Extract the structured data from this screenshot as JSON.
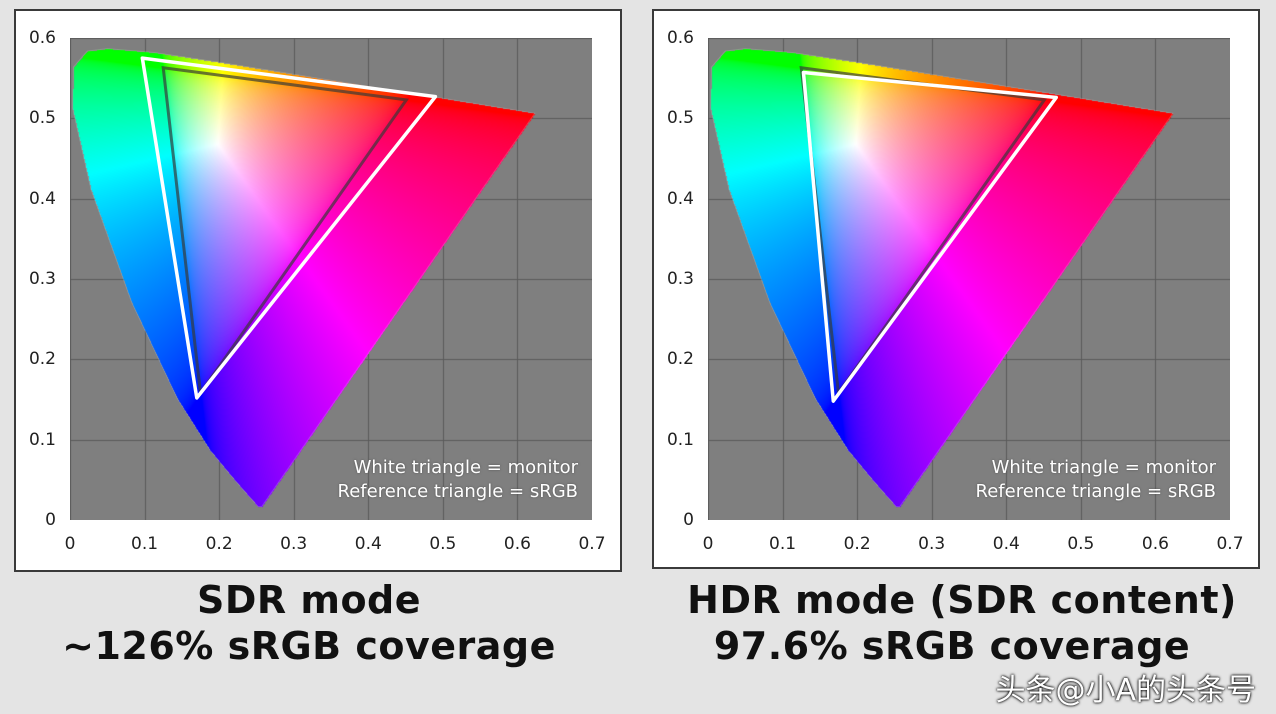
{
  "chart_data": [
    {
      "type": "scatter",
      "subtype": "CIE 1976 u'v' chromaticity gamut diagram",
      "title": "",
      "xlim": [
        0,
        0.7
      ],
      "ylim": [
        0,
        0.6
      ],
      "x_ticks": [
        "0",
        "0.1",
        "0.2",
        "0.3",
        "0.4",
        "0.5",
        "0.6",
        "0.7"
      ],
      "y_ticks": [
        "0",
        "0.1",
        "0.2",
        "0.3",
        "0.4",
        "0.5",
        "0.6"
      ],
      "grid": true,
      "legend": [
        "White triangle = monitor",
        "Reference triangle = sRGB"
      ],
      "legend_position": "bottom-right",
      "monitor_triangle": [
        [
          0.097,
          0.575
        ],
        [
          0.49,
          0.527
        ],
        [
          0.17,
          0.152
        ]
      ],
      "srgb_triangle": [
        [
          0.125,
          0.563
        ],
        [
          0.451,
          0.523
        ],
        [
          0.175,
          0.158
        ]
      ],
      "spectral_locus": [
        [
          0.2568,
          0.0165
        ],
        [
          0.2522,
          0.0169
        ],
        [
          0.2347,
          0.035
        ],
        [
          0.2161,
          0.055
        ],
        [
          0.1877,
          0.0871
        ],
        [
          0.144,
          0.151
        ],
        [
          0.0828,
          0.2708
        ],
        [
          0.0282,
          0.4117
        ],
        [
          0.0035,
          0.513
        ],
        [
          0.0046,
          0.5638
        ],
        [
          0.0231,
          0.5837
        ],
        [
          0.0501,
          0.5868
        ],
        [
          0.1127,
          0.582
        ],
        [
          0.2026,
          0.5694
        ],
        [
          0.3315,
          0.5501
        ],
        [
          0.4692,
          0.5296
        ],
        [
          0.5565,
          0.5165
        ],
        [
          0.6233,
          0.5064
        ]
      ],
      "caption": [
        "SDR mode",
        "~126% sRGB coverage"
      ]
    },
    {
      "type": "scatter",
      "subtype": "CIE 1976 u'v' chromaticity gamut diagram",
      "title": "",
      "xlim": [
        0,
        0.7
      ],
      "ylim": [
        0,
        0.6
      ],
      "x_ticks": [
        "0",
        "0.1",
        "0.2",
        "0.3",
        "0.4",
        "0.5",
        "0.6",
        "0.7"
      ],
      "y_ticks": [
        "0",
        "0.1",
        "0.2",
        "0.3",
        "0.4",
        "0.5",
        "0.6"
      ],
      "grid": true,
      "legend": [
        "White triangle = monitor",
        "Reference triangle = sRGB"
      ],
      "legend_position": "bottom-right",
      "monitor_triangle": [
        [
          0.128,
          0.557
        ],
        [
          0.467,
          0.526
        ],
        [
          0.168,
          0.148
        ]
      ],
      "srgb_triangle": [
        [
          0.125,
          0.563
        ],
        [
          0.451,
          0.523
        ],
        [
          0.175,
          0.158
        ]
      ],
      "spectral_locus": [
        [
          0.2568,
          0.0165
        ],
        [
          0.2522,
          0.0169
        ],
        [
          0.2347,
          0.035
        ],
        [
          0.2161,
          0.055
        ],
        [
          0.1877,
          0.0871
        ],
        [
          0.144,
          0.151
        ],
        [
          0.0828,
          0.2708
        ],
        [
          0.0282,
          0.4117
        ],
        [
          0.0035,
          0.513
        ],
        [
          0.0046,
          0.5638
        ],
        [
          0.0231,
          0.5837
        ],
        [
          0.0501,
          0.5868
        ],
        [
          0.1127,
          0.582
        ],
        [
          0.2026,
          0.5694
        ],
        [
          0.3315,
          0.5501
        ],
        [
          0.4692,
          0.5296
        ],
        [
          0.5565,
          0.5165
        ],
        [
          0.6233,
          0.5064
        ]
      ],
      "caption": [
        "HDR mode (SDR content)",
        "97.6% sRGB coverage"
      ]
    }
  ],
  "watermark": "头条@小A的头条号",
  "colors": {
    "plot_bg": "#7f7f7f",
    "monitor_triangle": "#ffffff",
    "srgb_triangle": "#3a3a3a"
  }
}
